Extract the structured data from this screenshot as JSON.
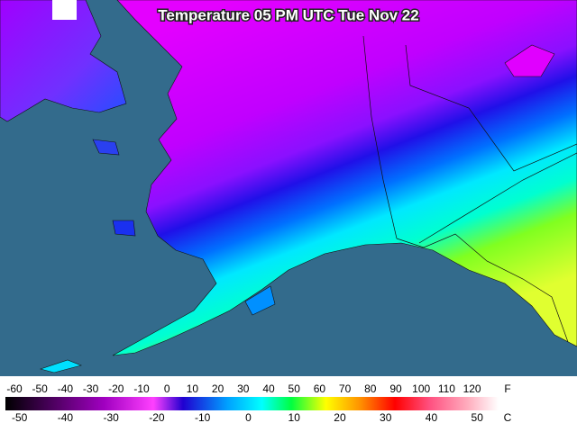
{
  "title": "Temperature 05 PM UTC Tue Nov 22",
  "legend": {
    "fahrenheit": [
      -60,
      -50,
      -40,
      -30,
      -20,
      -10,
      0,
      10,
      20,
      30,
      40,
      50,
      60,
      70,
      80,
      90,
      100,
      110,
      120
    ],
    "fahrenheit_unit": "F",
    "celsius": [
      -50,
      -40,
      -30,
      -20,
      -10,
      0,
      10,
      20,
      30,
      40,
      50
    ],
    "celsius_unit": "C"
  }
}
